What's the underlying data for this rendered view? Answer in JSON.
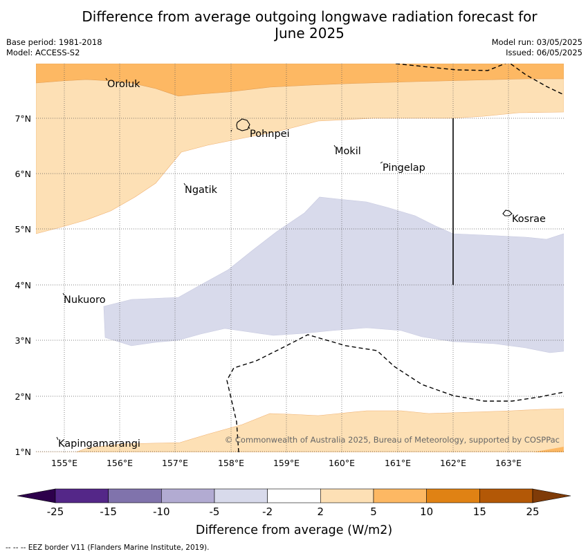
{
  "title": {
    "line1": "Difference from average outgoing longwave radiation forecast for",
    "line2": "June 2025"
  },
  "meta": {
    "base_period": "Base period: 1981-2018",
    "model": "Model: ACCESS-S2",
    "model_run": "Model run: 03/05/2025",
    "issued": "Issued: 06/05/2025"
  },
  "map": {
    "lon_labels": [
      "155°E",
      "156°E",
      "157°E",
      "158°E",
      "159°E",
      "160°E",
      "161°E",
      "162°E",
      "163°E"
    ],
    "lat_labels": [
      "7°N",
      "6°N",
      "5°N",
      "4°N",
      "3°N",
      "2°N",
      "1°N"
    ],
    "places": {
      "oroluk": "Oroluk",
      "pohnpei": "Pohnpei",
      "mokil": "Mokil",
      "pingelap": "Pingelap",
      "ngatik": "Ngatik",
      "kosrae": "Kosrae",
      "nukuoro": "Nukuoro",
      "kapingamarangi": "Kapingamarangi"
    },
    "copyright": "© Commonwealth of Australia 2025, Bureau of Meteorology, supported by COSPPac",
    "colors": {
      "plus_2_5": "#fde0b5",
      "plus_5_10": "#fdb863",
      "minus_2_5": "#d8daeb",
      "ocean_neutral": "#ffffff"
    }
  },
  "colorbar": {
    "ticks": [
      "-25",
      "-15",
      "-10",
      "-5",
      "-2",
      "2",
      "5",
      "10",
      "15",
      "25"
    ],
    "colors": [
      "#542788",
      "#8073ac",
      "#b2abd2",
      "#d8daeb",
      "#ffffff",
      "#fde0b5",
      "#fdb863",
      "#e08214",
      "#b35806"
    ],
    "under_color": "#2d004b",
    "over_color": "#7f3b08",
    "label": "Difference from average (W/m2)"
  },
  "footer": "--  --  -- EEZ border V11 (Flanders Marine Institute, 2019)."
}
